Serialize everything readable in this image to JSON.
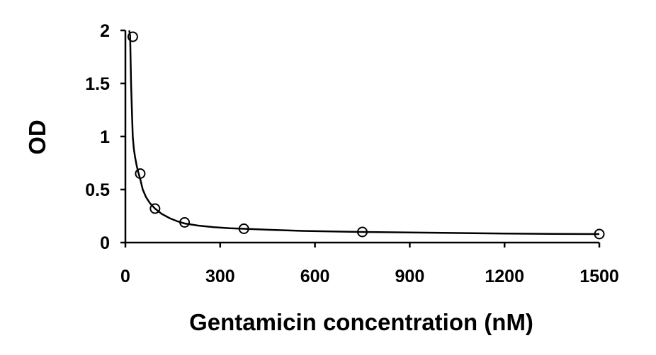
{
  "chart_data": {
    "type": "scatter",
    "title": "",
    "xlabel": "Gentamicin concentration (nM)",
    "ylabel": "OD",
    "xlim": [
      0,
      1500
    ],
    "ylim": [
      0,
      2
    ],
    "xticks": [
      0,
      300,
      600,
      900,
      1200,
      1500
    ],
    "yticks": [
      0,
      0.5,
      1,
      1.5,
      2
    ],
    "xtick_labels": [
      "0",
      "300",
      "600",
      "900",
      "1200",
      "1500"
    ],
    "ytick_labels": [
      "0",
      "0.5",
      "1",
      "1.5",
      "2"
    ],
    "grid": false,
    "legend": "none",
    "series": [
      {
        "marker": "open-circle",
        "x": [
          23.4,
          46.9,
          93.8,
          187.5,
          375,
          750,
          1500
        ],
        "y": [
          1.94,
          0.65,
          0.32,
          0.19,
          0.13,
          0.1,
          0.08
        ]
      }
    ],
    "fit_curve": {
      "style": "solid-line",
      "x": [
        12,
        15,
        18,
        21,
        23.4,
        27,
        31,
        36,
        41,
        46.9,
        55,
        65,
        78,
        93.8,
        115,
        140,
        165,
        187.5,
        230,
        280,
        330,
        375,
        460,
        560,
        650,
        750,
        900,
        1050,
        1200,
        1350,
        1500
      ],
      "y": [
        2.0,
        1.95,
        1.5,
        1.2,
        1.0,
        0.88,
        0.8,
        0.72,
        0.66,
        0.6,
        0.5,
        0.43,
        0.37,
        0.32,
        0.27,
        0.23,
        0.2,
        0.18,
        0.16,
        0.145,
        0.135,
        0.13,
        0.12,
        0.11,
        0.105,
        0.1,
        0.095,
        0.09,
        0.085,
        0.082,
        0.08
      ]
    }
  }
}
